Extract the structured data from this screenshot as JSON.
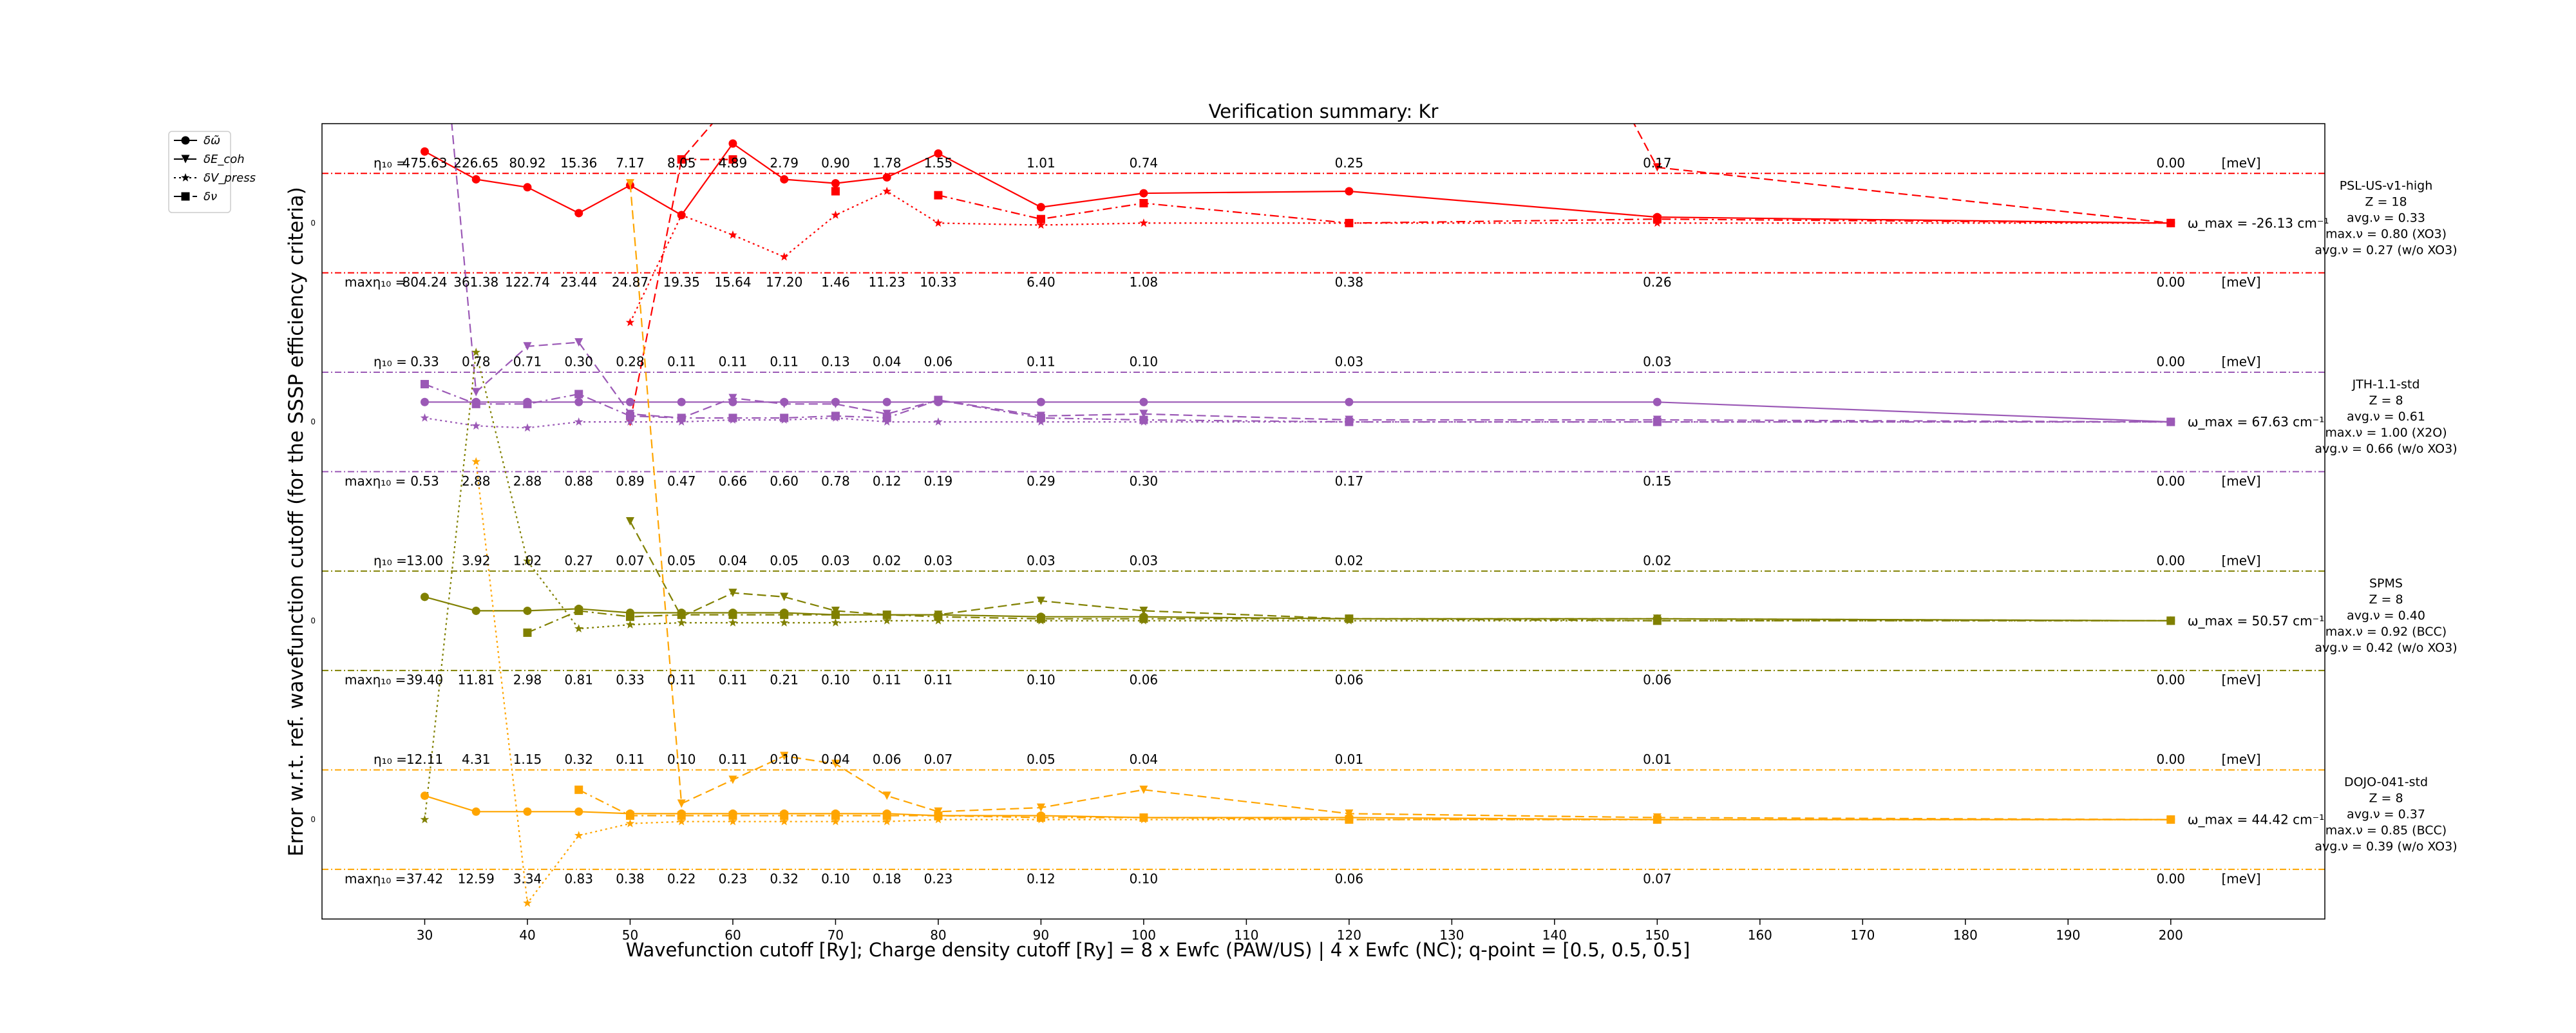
{
  "chart_data": {
    "type": "line",
    "title": "Verification summary: Kr",
    "xlabel": "Wavefunction cutoff [Ry]; Charge density cutoff [Ry] = 8 x Ewfc (PAW/US) | 4 x Ewfc (NC); q-point = [0.5, 0.5, 0.5]",
    "ylabel": "Error w.r.t. ref. wavefunction cutoff (for the SSSP efficiency criteria)",
    "xlim": [
      20,
      215
    ],
    "ylim": [
      -0.5,
      3.5
    ],
    "xticks": [
      30,
      40,
      50,
      60,
      70,
      80,
      90,
      100,
      110,
      120,
      130,
      140,
      150,
      160,
      170,
      180,
      190,
      200
    ],
    "ytick_label": "0",
    "legend": {
      "placement": "outside-top-left",
      "entries": [
        {
          "label": "δω̃",
          "marker": "circle",
          "dash": "solid"
        },
        {
          "label": "δE_coh",
          "marker": "triangle",
          "dash": "dashed"
        },
        {
          "label": "δV_press",
          "marker": "star",
          "dash": "dotted"
        },
        {
          "label": "δν",
          "marker": "square",
          "dash": "dashdot"
        }
      ]
    },
    "x": [
      30,
      35,
      40,
      45,
      50,
      55,
      60,
      65,
      70,
      75,
      80,
      90,
      100,
      120,
      150,
      200
    ],
    "units_label": "[meV]",
    "eta_prefix": "η₁₀ =",
    "max_eta_prefix": "maxη₁₀ =",
    "pseudopotentials": [
      {
        "name": "PSL-US-v1-high",
        "color": "#ff0000",
        "offset": 3,
        "info": [
          "PSL-US-v1-high",
          "Z = 18",
          "avg.ν = 0.33",
          "max.ν = 0.80 (XO3)",
          "avg.ν = 0.27 (w/o XO3)"
        ],
        "omega_label": "ω_max = -26.13 cm⁻¹",
        "eta": [
          "475.63",
          "226.65",
          "80.92",
          "15.36",
          "7.17",
          "8.05",
          "4.89",
          "2.79",
          "0.90",
          "1.78",
          "1.55",
          "1.01",
          "0.74",
          "0.25",
          "0.17",
          "0.00"
        ],
        "max_eta": [
          "804.24",
          "361.38",
          "122.74",
          "23.44",
          "24.87",
          "19.35",
          "15.64",
          "17.20",
          "1.46",
          "11.23",
          "10.33",
          "6.40",
          "1.08",
          "0.38",
          "0.26",
          "0.00"
        ],
        "series": {
          "phonon": [
            0.36,
            0.22,
            0.18,
            0.05,
            0.19,
            0.04,
            0.4,
            0.22,
            0.2,
            0.23,
            0.35,
            0.08,
            0.15,
            0.16,
            0.03,
            0.0
          ],
          "cohesive": [
            null,
            null,
            null,
            null,
            -1.0,
            0.32,
            0.62,
            1.0,
            2.5,
            4.0,
            6.0,
            4.2,
            3.8,
            3.2,
            0.28,
            0.0
          ],
          "pressure": [
            null,
            null,
            null,
            null,
            -0.5,
            0.04,
            -0.06,
            -0.17,
            0.04,
            0.16,
            0.0,
            -0.01,
            0.0,
            0.0,
            0.0,
            0.0
          ],
          "nu": [
            null,
            null,
            null,
            null,
            null,
            0.32,
            0.32,
            null,
            0.16,
            null,
            0.14,
            0.02,
            0.1,
            0.0,
            0.02,
            0.0
          ]
        }
      },
      {
        "name": "JTH-1.1-std",
        "color": "#9b59b6",
        "offset": 2,
        "info": [
          "JTH-1.1-std",
          "Z = 8",
          "avg.ν = 0.61",
          "max.ν = 1.00 (X2O)",
          "avg.ν = 0.66 (w/o XO3)"
        ],
        "omega_label": "ω_max = 67.63 cm⁻¹",
        "eta": [
          "0.33",
          "0.78",
          "0.71",
          "0.30",
          "0.28",
          "0.11",
          "0.11",
          "0.11",
          "0.13",
          "0.04",
          "0.06",
          "0.11",
          "0.10",
          "0.03",
          "0.03",
          "0.00"
        ],
        "max_eta": [
          "0.53",
          "2.88",
          "2.88",
          "0.88",
          "0.89",
          "0.47",
          "0.66",
          "0.60",
          "0.78",
          "0.12",
          "0.19",
          "0.29",
          "0.30",
          "0.17",
          "0.15",
          "0.00"
        ],
        "series": {
          "phonon": [
            0.1,
            0.1,
            0.1,
            0.1,
            0.1,
            0.1,
            0.1,
            0.1,
            0.1,
            0.1,
            0.1,
            0.1,
            0.1,
            0.1,
            0.1,
            0.0
          ],
          "cohesive": [
            3.0,
            0.15,
            0.38,
            0.4,
            0.04,
            0.02,
            0.12,
            0.09,
            0.09,
            0.04,
            0.11,
            0.03,
            0.04,
            0.01,
            0.01,
            0.0
          ],
          "pressure": [
            0.02,
            -0.02,
            -0.03,
            0.0,
            0.0,
            0.0,
            0.01,
            0.01,
            0.02,
            0.0,
            0.0,
            0.0,
            0.0,
            0.0,
            0.0,
            0.0
          ],
          "nu": [
            0.19,
            0.09,
            0.09,
            0.14,
            0.03,
            0.02,
            0.02,
            0.02,
            0.03,
            0.02,
            0.11,
            0.02,
            0.01,
            0.0,
            0.0,
            0.0
          ]
        }
      },
      {
        "name": "SPMS",
        "color": "#808000",
        "offset": 1,
        "info": [
          "SPMS",
          "Z = 8",
          "avg.ν = 0.40",
          "max.ν = 0.92 (BCC)",
          "avg.ν = 0.42 (w/o XO3)"
        ],
        "omega_label": "ω_max = 50.57 cm⁻¹",
        "eta": [
          "13.00",
          "3.92",
          "1.02",
          "0.27",
          "0.07",
          "0.05",
          "0.04",
          "0.05",
          "0.03",
          "0.02",
          "0.03",
          "0.03",
          "0.03",
          "0.02",
          "0.02",
          "0.00"
        ],
        "max_eta": [
          "39.40",
          "11.81",
          "2.98",
          "0.81",
          "0.33",
          "0.11",
          "0.11",
          "0.21",
          "0.10",
          "0.11",
          "0.11",
          "0.10",
          "0.06",
          "0.06",
          "0.06",
          "0.00"
        ],
        "series": {
          "phonon": [
            0.12,
            0.05,
            0.05,
            0.06,
            0.04,
            0.04,
            0.04,
            0.04,
            0.03,
            0.03,
            0.03,
            0.02,
            0.02,
            0.01,
            0.01,
            0.0
          ],
          "cohesive": [
            null,
            null,
            4.5,
            null,
            0.5,
            0.02,
            0.14,
            0.12,
            0.05,
            0.03,
            0.03,
            0.1,
            0.05,
            0.01,
            0.01,
            0.0
          ],
          "pressure": [
            -1.0,
            1.35,
            0.3,
            -0.04,
            -0.02,
            -0.01,
            -0.01,
            -0.01,
            -0.01,
            0.0,
            0.0,
            0.0,
            0.0,
            0.0,
            0.0,
            0.0
          ],
          "nu": [
            null,
            null,
            -0.06,
            0.05,
            0.02,
            0.03,
            0.03,
            0.03,
            0.03,
            0.03,
            0.02,
            0.01,
            0.01,
            0.01,
            0.0,
            0.0
          ]
        }
      },
      {
        "name": "DOJO-041-std",
        "color": "#ffa500",
        "offset": 0,
        "info": [
          "DOJO-041-std",
          "Z = 8",
          "avg.ν = 0.37",
          "max.ν = 0.85 (BCC)",
          "avg.ν = 0.39 (w/o XO3)"
        ],
        "omega_label": "ω_max = 44.42 cm⁻¹",
        "eta": [
          "12.11",
          "4.31",
          "1.15",
          "0.32",
          "0.11",
          "0.10",
          "0.11",
          "0.10",
          "0.04",
          "0.06",
          "0.07",
          "0.05",
          "0.04",
          "0.01",
          "0.01",
          "0.00"
        ],
        "max_eta": [
          "37.42",
          "12.59",
          "3.34",
          "0.83",
          "0.38",
          "0.22",
          "0.23",
          "0.32",
          "0.10",
          "0.18",
          "0.23",
          "0.12",
          "0.10",
          "0.06",
          "0.07",
          "0.00"
        ],
        "series": {
          "phonon": [
            0.12,
            0.04,
            0.04,
            0.04,
            0.03,
            0.03,
            0.03,
            0.03,
            0.03,
            0.03,
            0.02,
            0.02,
            0.01,
            0.01,
            0.0,
            0.0
          ],
          "cohesive": [
            null,
            null,
            null,
            null,
            3.2,
            0.08,
            0.2,
            0.32,
            0.28,
            0.12,
            0.04,
            0.06,
            0.15,
            0.03,
            0.01,
            0.0
          ],
          "pressure": [
            null,
            1.8,
            -0.42,
            -0.08,
            -0.02,
            -0.01,
            -0.01,
            -0.01,
            -0.01,
            -0.01,
            0.0,
            0.0,
            0.0,
            0.0,
            0.0,
            0.0
          ],
          "nu": [
            null,
            null,
            null,
            0.15,
            0.02,
            0.02,
            0.02,
            0.02,
            0.02,
            0.02,
            0.02,
            0.01,
            0.01,
            0.0,
            0.0,
            0.0
          ]
        }
      }
    ]
  }
}
